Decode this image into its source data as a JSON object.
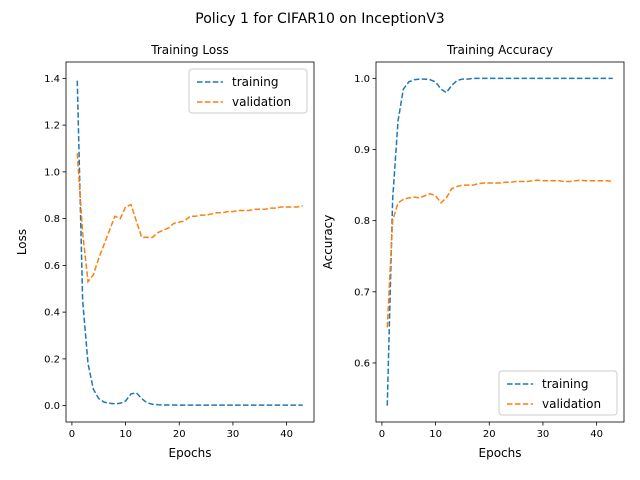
{
  "figure": {
    "suptitle": "Policy 1 for CIFAR10 on InceptionV3"
  },
  "colors": {
    "training": "#1f77b4",
    "validation": "#ff7f0e",
    "axes": "#000000",
    "legend_border": "#cccccc"
  },
  "chart_data": [
    {
      "type": "line",
      "title": "Training Loss",
      "xlabel": "Epochs",
      "ylabel": "Loss",
      "xlim": [
        -1.1,
        45.1
      ],
      "ylim": [
        -0.07,
        1.47
      ],
      "xticks": [
        0,
        10,
        20,
        30,
        40
      ],
      "yticks": [
        0.0,
        0.2,
        0.4,
        0.6,
        0.8,
        1.0,
        1.2,
        1.4
      ],
      "ytick_decimals": 1,
      "legend_position": "top-right",
      "grid": false,
      "linestyle": "dashed",
      "x": [
        1,
        2,
        3,
        4,
        5,
        6,
        7,
        8,
        9,
        10,
        11,
        12,
        13,
        14,
        15,
        16,
        17,
        18,
        19,
        20,
        21,
        22,
        23,
        24,
        25,
        26,
        27,
        28,
        29,
        30,
        31,
        32,
        33,
        34,
        35,
        36,
        37,
        38,
        39,
        40,
        41,
        42,
        43
      ],
      "series": [
        {
          "name": "training",
          "color_key": "training",
          "values": [
            1.39,
            0.45,
            0.18,
            0.07,
            0.03,
            0.015,
            0.01,
            0.008,
            0.01,
            0.02,
            0.05,
            0.055,
            0.03,
            0.012,
            0.006,
            0.004,
            0.003,
            0.003,
            0.003,
            0.002,
            0.002,
            0.002,
            0.002,
            0.002,
            0.002,
            0.002,
            0.002,
            0.002,
            0.002,
            0.002,
            0.002,
            0.002,
            0.002,
            0.002,
            0.002,
            0.002,
            0.002,
            0.002,
            0.002,
            0.002,
            0.002,
            0.002,
            0.002
          ]
        },
        {
          "name": "validation",
          "color_key": "validation",
          "values": [
            1.08,
            0.74,
            0.53,
            0.56,
            0.63,
            0.69,
            0.75,
            0.81,
            0.8,
            0.85,
            0.86,
            0.79,
            0.72,
            0.72,
            0.72,
            0.74,
            0.75,
            0.76,
            0.78,
            0.785,
            0.79,
            0.81,
            0.81,
            0.815,
            0.815,
            0.82,
            0.825,
            0.825,
            0.83,
            0.83,
            0.835,
            0.835,
            0.835,
            0.84,
            0.84,
            0.84,
            0.845,
            0.845,
            0.85,
            0.85,
            0.85,
            0.85,
            0.855
          ]
        }
      ]
    },
    {
      "type": "line",
      "title": "Training Accuracy",
      "xlabel": "Epochs",
      "ylabel": "Accuracy",
      "xlim": [
        -1.1,
        45.1
      ],
      "ylim": [
        0.517,
        1.023
      ],
      "xticks": [
        0,
        10,
        20,
        30,
        40
      ],
      "yticks": [
        0.6,
        0.7,
        0.8,
        0.9,
        1.0
      ],
      "ytick_decimals": 1,
      "legend_position": "bottom-right",
      "grid": false,
      "linestyle": "dashed",
      "x": [
        1,
        2,
        3,
        4,
        5,
        6,
        7,
        8,
        9,
        10,
        11,
        12,
        13,
        14,
        15,
        16,
        17,
        18,
        19,
        20,
        21,
        22,
        23,
        24,
        25,
        26,
        27,
        28,
        29,
        30,
        31,
        32,
        33,
        34,
        35,
        36,
        37,
        38,
        39,
        40,
        41,
        42,
        43
      ],
      "series": [
        {
          "name": "training",
          "color_key": "training",
          "values": [
            0.54,
            0.83,
            0.94,
            0.985,
            0.995,
            0.998,
            0.999,
            0.999,
            0.998,
            0.995,
            0.985,
            0.98,
            0.99,
            0.997,
            0.999,
            0.999,
            1.0,
            1.0,
            1.0,
            1.0,
            1.0,
            1.0,
            1.0,
            1.0,
            1.0,
            1.0,
            1.0,
            1.0,
            1.0,
            1.0,
            1.0,
            1.0,
            1.0,
            1.0,
            1.0,
            1.0,
            1.0,
            1.0,
            1.0,
            1.0,
            1.0,
            1.0,
            1.0
          ]
        },
        {
          "name": "validation",
          "color_key": "validation",
          "values": [
            0.65,
            0.8,
            0.825,
            0.83,
            0.832,
            0.833,
            0.832,
            0.835,
            0.838,
            0.835,
            0.825,
            0.832,
            0.845,
            0.848,
            0.85,
            0.85,
            0.85,
            0.852,
            0.853,
            0.853,
            0.853,
            0.853,
            0.854,
            0.854,
            0.855,
            0.855,
            0.855,
            0.856,
            0.857,
            0.856,
            0.856,
            0.856,
            0.856,
            0.855,
            0.855,
            0.856,
            0.857,
            0.856,
            0.856,
            0.856,
            0.856,
            0.856,
            0.855
          ]
        }
      ]
    }
  ]
}
